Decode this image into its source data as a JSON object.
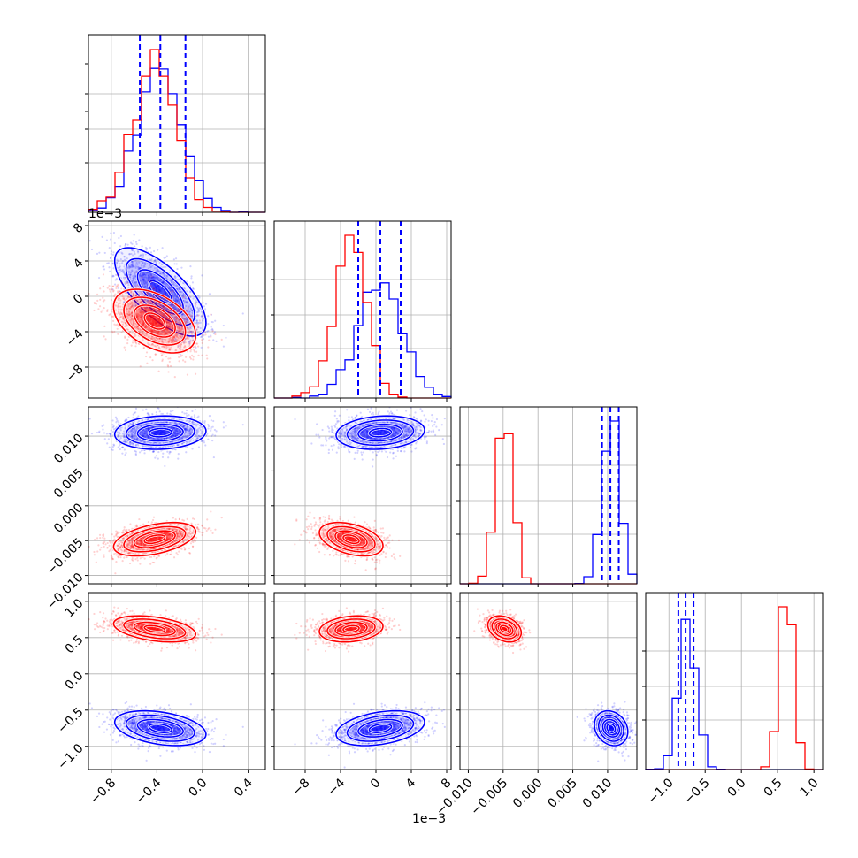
{
  "chart_data": {
    "type": "corner",
    "parameters": [
      {
        "id": "p0",
        "lim": [
          -1.0,
          0.55
        ],
        "ticks": [
          -0.8,
          -0.4,
          0.0,
          0.4
        ],
        "tick_labels": [
          "−0.8",
          "−0.4",
          "0.0",
          "0.4"
        ]
      },
      {
        "id": "p1",
        "lim": [
          -0.0115,
          0.0085
        ],
        "ticks": [
          -0.008,
          -0.004,
          0.0,
          0.004,
          0.008
        ],
        "tick_labels": [
          "−8",
          "−4",
          "0",
          "4",
          "8"
        ],
        "offset_text": "1e−3"
      },
      {
        "id": "p2",
        "lim": [
          -0.0112,
          0.0142
        ],
        "ticks": [
          -0.01,
          -0.005,
          0.0,
          0.005,
          0.01
        ],
        "tick_labels": [
          "−0.010",
          "−0.005",
          "0.000",
          "0.005",
          "0.010"
        ]
      },
      {
        "id": "p3",
        "lim": [
          -1.32,
          1.12
        ],
        "ticks": [
          -1.0,
          -0.5,
          0.0,
          0.5,
          1.0
        ],
        "tick_labels": [
          "−1.0",
          "−0.5",
          "0.0",
          "0.5",
          "1.0"
        ]
      }
    ],
    "series": [
      {
        "color": "#0000ff",
        "mean": [
          -0.37,
          0.0005,
          0.0105,
          -0.75
        ],
        "std": [
          0.2,
          0.0025,
          0.0012,
          0.12
        ],
        "corr": {
          "0-1": -0.7,
          "0-2": 0.1,
          "0-3": -0.35,
          "1-2": 0.15,
          "1-3": 0.35,
          "2-3": -0.2
        },
        "quantiles": [
          [
            -0.55,
            -0.37,
            -0.15
          ],
          [
            -0.002,
            0.0005,
            0.0028
          ],
          [
            0.0092,
            0.0104,
            0.0116
          ],
          [
            -0.87,
            -0.77,
            -0.66
          ]
        ]
      },
      {
        "color": "#ff0000",
        "mean": [
          -0.42,
          -0.0028,
          -0.0048,
          0.62
        ],
        "std": [
          0.18,
          0.0018,
          0.0012,
          0.09
        ],
        "corr": {
          "0-1": -0.45,
          "0-2": 0.45,
          "0-3": -0.4,
          "1-2": -0.4,
          "1-3": 0.2,
          "2-3": -0.3
        },
        "quantiles": null
      }
    ],
    "quantile_line_color": "#0000ff",
    "contour_levels_sigma": [
      0.5,
      1.0,
      1.5,
      2.0
    ],
    "grid": true,
    "title": "",
    "legend": "none"
  }
}
